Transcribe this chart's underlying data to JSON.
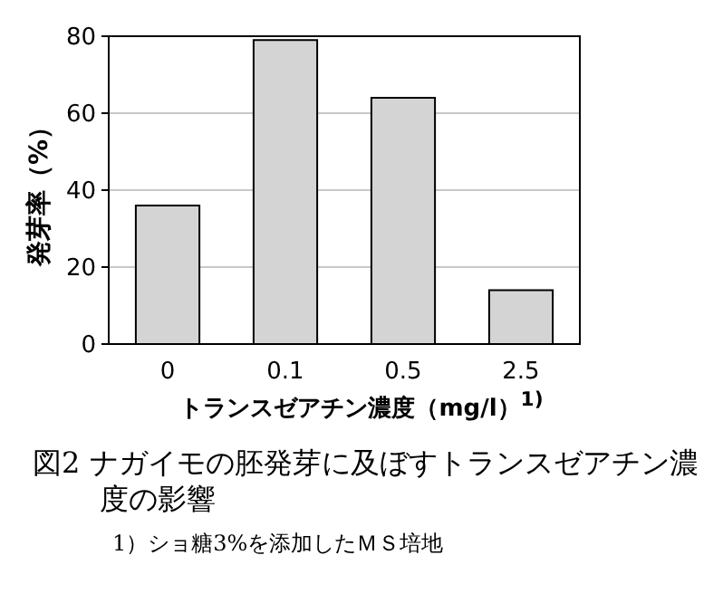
{
  "chart_data": {
    "type": "bar",
    "title": "図2 ナガイモの胚発芽に及ぼすトランスゼアチン濃度の影響",
    "xlabel": "トランスゼアチン濃度（mg/l）$^{1)}$",
    "ylabel": "発芽率（%）",
    "categories": [
      "0",
      "0.1",
      "0.5",
      "2.5"
    ],
    "values": [
      36,
      79,
      64,
      14
    ],
    "color": "#d4d4d4",
    "ylim": [
      0,
      80
    ],
    "yticks": [
      0,
      20,
      40,
      60,
      80
    ],
    "grid": "y",
    "annotations": [
      "1）ショ糖3%を添加したＭＳ培地"
    ]
  }
}
